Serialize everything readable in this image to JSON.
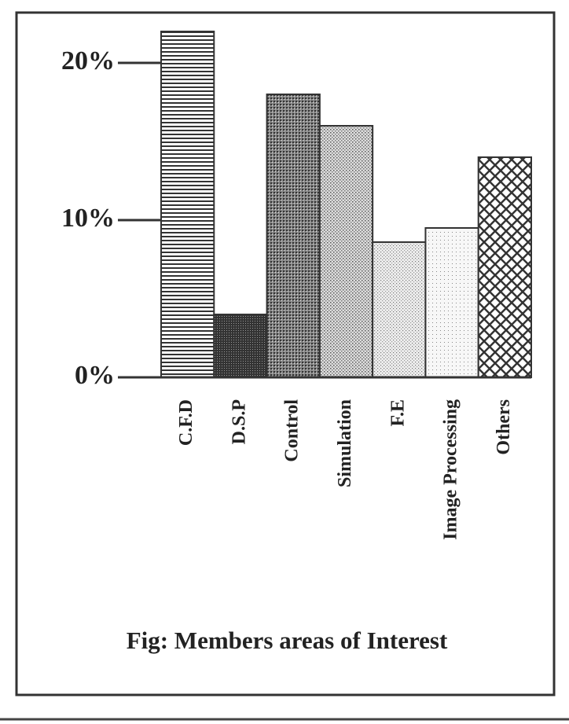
{
  "chart_data": {
    "type": "bar",
    "title": "Fig: Members areas of Interest",
    "categories": [
      "C.F.D",
      "D.S.P",
      "Control",
      "Simulation",
      "F.E",
      "Image Processing",
      "Others"
    ],
    "values": [
      22,
      4,
      18,
      16,
      8.6,
      9.5,
      14
    ],
    "ylim": [
      0,
      22
    ],
    "yticks": [
      {
        "value": 0,
        "label": "0%"
      },
      {
        "value": 10,
        "label": "10%"
      },
      {
        "value": 20,
        "label": "20%"
      }
    ],
    "grid": false
  }
}
